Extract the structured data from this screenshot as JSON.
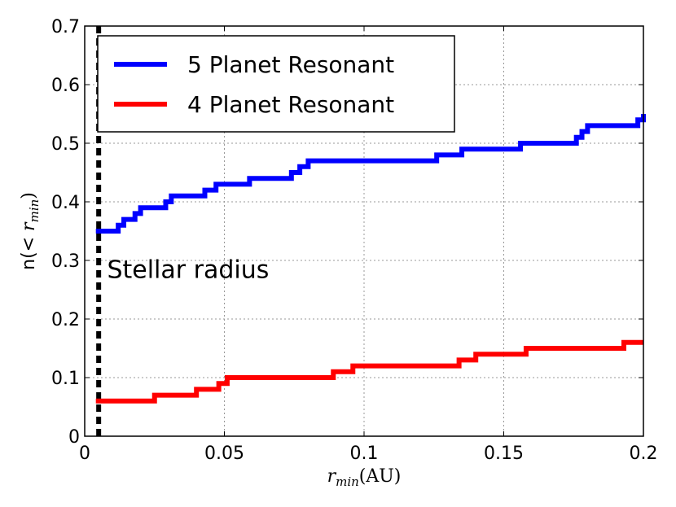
{
  "chart_data": {
    "type": "line",
    "xlabel": "r_min(AU)",
    "ylabel": "n(< r_min)",
    "xlim": [
      0,
      0.2
    ],
    "ylim": [
      0,
      0.7
    ],
    "xticks": [
      0,
      0.05,
      0.1,
      0.15,
      0.2
    ],
    "xtick_labels": [
      "0",
      "0.05",
      "0.1",
      "0.15",
      "0.2"
    ],
    "yticks": [
      0,
      0.1,
      0.2,
      0.3,
      0.4,
      0.5,
      0.6,
      0.7
    ],
    "ytick_labels": [
      "0",
      "0.1",
      "0.2",
      "0.3",
      "0.4",
      "0.5",
      "0.6",
      "0.7"
    ],
    "grid": true,
    "legend_position": "top-left",
    "series": [
      {
        "name": "5 Planet Resonant",
        "color": "#0000ff",
        "style": "step",
        "x": [
          0.004,
          0.012,
          0.014,
          0.018,
          0.02,
          0.029,
          0.031,
          0.033,
          0.043,
          0.047,
          0.059,
          0.074,
          0.077,
          0.08,
          0.126,
          0.135,
          0.156,
          0.176,
          0.178,
          0.18,
          0.182,
          0.198,
          0.2
        ],
        "y": [
          0.35,
          0.36,
          0.37,
          0.38,
          0.39,
          0.4,
          0.41,
          0.41,
          0.42,
          0.43,
          0.44,
          0.45,
          0.46,
          0.47,
          0.48,
          0.49,
          0.5,
          0.51,
          0.52,
          0.53,
          0.53,
          0.54,
          0.55
        ]
      },
      {
        "name": "4 Planet Resonant",
        "color": "#ff0000",
        "style": "step",
        "x": [
          0.004,
          0.025,
          0.04,
          0.048,
          0.051,
          0.089,
          0.096,
          0.134,
          0.14,
          0.158,
          0.193,
          0.2
        ],
        "y": [
          0.06,
          0.07,
          0.08,
          0.09,
          0.1,
          0.11,
          0.12,
          0.13,
          0.14,
          0.15,
          0.16,
          0.16
        ]
      }
    ],
    "vline": {
      "x": 0.005,
      "style": "dashed",
      "color": "#000000"
    },
    "annotation": {
      "text": "Stellar radius",
      "x": 0.008,
      "y": 0.27
    }
  }
}
